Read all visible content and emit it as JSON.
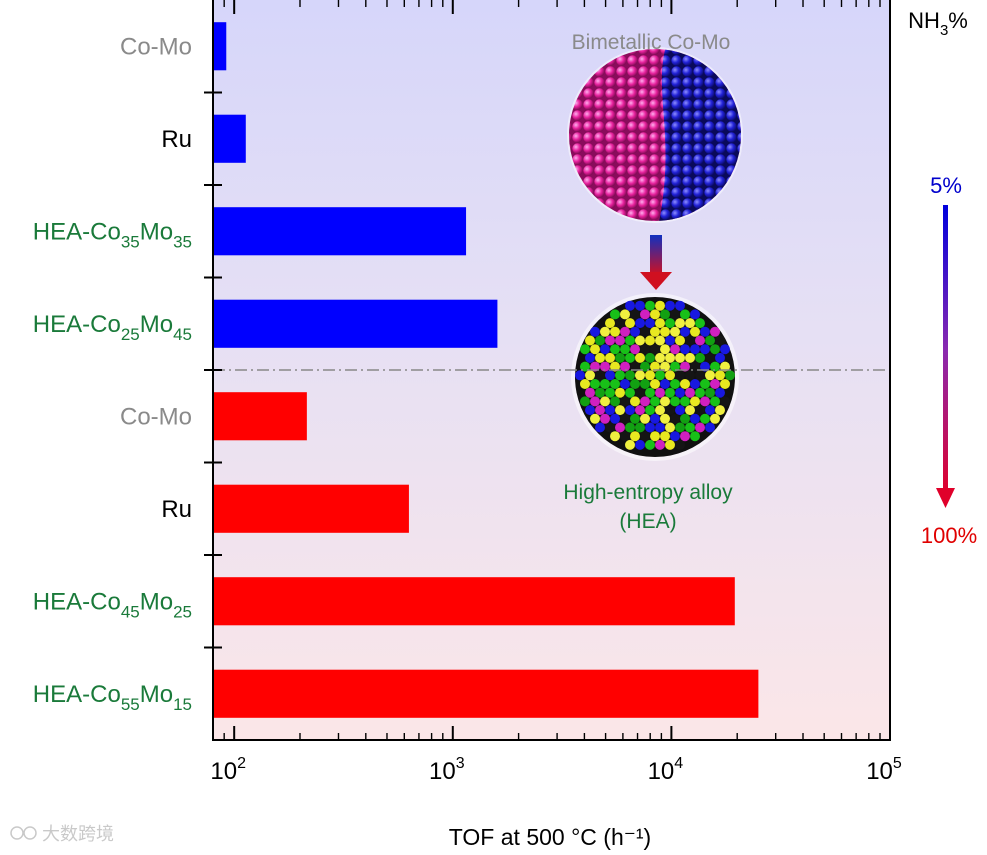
{
  "chart_data": {
    "type": "bar",
    "orientation": "horizontal",
    "x_scale": "log",
    "xlim": [
      80,
      100000
    ],
    "xlabel": "TOF at 500 °C (h⁻¹)",
    "x_ticks": [
      {
        "value": 100,
        "base": "10",
        "exp": "2"
      },
      {
        "value": 1000,
        "base": "10",
        "exp": "3"
      },
      {
        "value": 10000,
        "base": "10",
        "exp": "4"
      },
      {
        "value": 100000,
        "base": "10",
        "exp": "5"
      }
    ],
    "grid": false,
    "series": [
      {
        "name": "5%",
        "color": "#0000ff",
        "bars": [
          {
            "label": {
              "main": "Co-Mo"
            },
            "label_color": "#8a8a8a",
            "value": 92
          },
          {
            "label": {
              "main": "Ru"
            },
            "label_color": "#000000",
            "value": 113
          },
          {
            "label": {
              "main": "HEA-Co",
              "sub1": "35",
              "mid": "Mo",
              "sub2": "35"
            },
            "label_color": "#1a7a3a",
            "value": 1150
          },
          {
            "label": {
              "main": "HEA-Co",
              "sub1": "25",
              "mid": "Mo",
              "sub2": "45"
            },
            "label_color": "#1a7a3a",
            "value": 1600
          }
        ]
      },
      {
        "name": "100%",
        "color": "#ff0000",
        "bars": [
          {
            "label": {
              "main": "Co-Mo"
            },
            "label_color": "#8a8a8a",
            "value": 215
          },
          {
            "label": {
              "main": "Ru"
            },
            "label_color": "#000000",
            "value": 630
          },
          {
            "label": {
              "main": "HEA-Co",
              "sub1": "45",
              "mid": "Mo",
              "sub2": "25"
            },
            "label_color": "#1a7a3a",
            "value": 19500
          },
          {
            "label": {
              "main": "HEA-Co",
              "sub1": "55",
              "mid": "Mo",
              "sub2": "15"
            },
            "label_color": "#1a7a3a",
            "value": 25000
          }
        ]
      }
    ],
    "right_axis": {
      "title": {
        "main": "NH",
        "sub": "3",
        "rest": "%"
      },
      "top_label": "5%",
      "top_color": "#0000cc",
      "bottom_label": "100%",
      "bottom_color": "#e00000"
    },
    "annotations": {
      "top": "Bimetallic Co-Mo",
      "bottom_line1": "High-entropy alloy",
      "bottom_line2": "(HEA)"
    }
  },
  "watermark": "大数跨境"
}
